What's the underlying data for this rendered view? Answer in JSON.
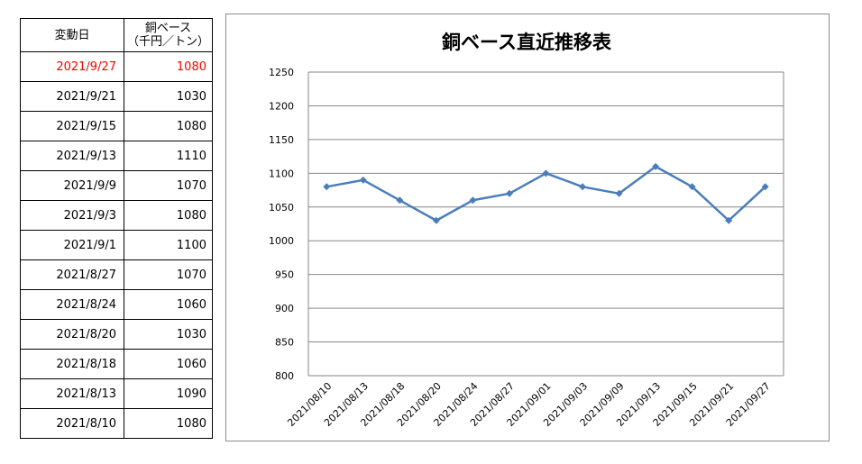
{
  "table": {
    "header": {
      "date_label": "変動日",
      "price_label_line1": "銅ベース",
      "price_label_line2": "（千円／トン）"
    },
    "highlight_color": "#ff0000",
    "rows": [
      {
        "date": "2021/9/27",
        "price": "1080"
      },
      {
        "date": "2021/9/21",
        "price": "1030"
      },
      {
        "date": "2021/9/15",
        "price": "1080"
      },
      {
        "date": "2021/9/13",
        "price": "1110"
      },
      {
        "date": "2021/9/9",
        "price": "1070"
      },
      {
        "date": "2021/9/3",
        "price": "1080"
      },
      {
        "date": "2021/9/1",
        "price": "1100"
      },
      {
        "date": "2021/8/27",
        "price": "1070"
      },
      {
        "date": "2021/8/24",
        "price": "1060"
      },
      {
        "date": "2021/8/20",
        "price": "1030"
      },
      {
        "date": "2021/8/18",
        "price": "1060"
      },
      {
        "date": "2021/8/13",
        "price": "1090"
      },
      {
        "date": "2021/8/10",
        "price": "1080"
      }
    ]
  },
  "chart_data": {
    "type": "line",
    "title": "銅ベース直近推移表",
    "xlabel": "",
    "ylabel": "",
    "categories": [
      "2021/08/10",
      "2021/08/13",
      "2021/08/18",
      "2021/08/20",
      "2021/08/24",
      "2021/08/27",
      "2021/09/01",
      "2021/09/03",
      "2021/09/09",
      "2021/09/13",
      "2021/09/15",
      "2021/09/21",
      "2021/09/27"
    ],
    "series": [
      {
        "values": [
          1080,
          1090,
          1060,
          1030,
          1060,
          1070,
          1100,
          1080,
          1070,
          1110,
          1080,
          1030,
          1080
        ],
        "color": "#4a7ebb"
      }
    ],
    "ylim": [
      800,
      1250
    ],
    "yticks": [
      800,
      850,
      900,
      950,
      1000,
      1050,
      1100,
      1150,
      1200,
      1250
    ],
    "grid": true,
    "gridline_color": "#878787",
    "legend": "none"
  }
}
